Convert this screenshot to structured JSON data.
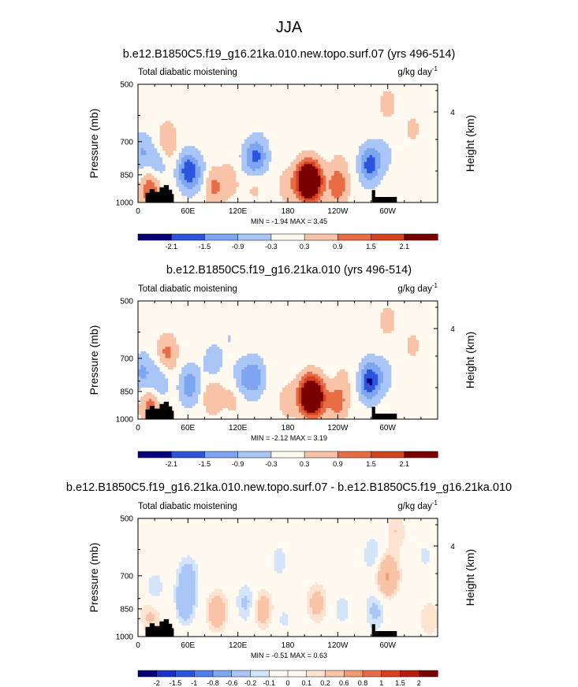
{
  "figure": {
    "title": "JJA"
  },
  "chart_data": [
    {
      "type": "heatmap",
      "title": "b.e12.B1850C5.f19_g16.21ka.010.new.topo.surf.07 (yrs 496-514)",
      "left_label": "Total diabatic moistening",
      "units": "g/kg day",
      "units_exp": "-1",
      "ylabel": "Pressure (mb)",
      "ylabel_right": "Height (km)",
      "y_ticks": [
        "500",
        "700",
        "850",
        "1000"
      ],
      "y_right_ticks": [
        "4"
      ],
      "x_ticks": [
        "0",
        "60E",
        "120E",
        "180",
        "120W",
        "60W"
      ],
      "xlim": [
        0,
        360
      ],
      "ylim": [
        1000,
        500
      ],
      "min_max": "MIN = -1.94 MAX = 3.45",
      "colorbar_labels": [
        "-2.1",
        "-1.5",
        "-0.9",
        "-0.3",
        "0.3",
        "0.9",
        "1.5",
        "2.1"
      ],
      "features": [
        {
          "lon": 202,
          "p": 880,
          "value": 3.45
        },
        {
          "lon": 212,
          "p": 885,
          "value": 2.0
        },
        {
          "lon": 240,
          "p": 910,
          "value": 1.3
        },
        {
          "lon": 180,
          "p": 905,
          "value": 0.6
        },
        {
          "lon": 242,
          "p": 800,
          "value": 0.3
        },
        {
          "lon": 15,
          "p": 930,
          "value": 1.5
        },
        {
          "lon": 35,
          "p": 700,
          "value": 1.0
        },
        {
          "lon": 90,
          "p": 910,
          "value": 1.1
        },
        {
          "lon": 110,
          "p": 880,
          "value": 0.6
        },
        {
          "lon": 140,
          "p": 900,
          "value": 0.5
        },
        {
          "lon": 5,
          "p": 740,
          "value": -0.9
        },
        {
          "lon": 24,
          "p": 790,
          "value": -0.8
        },
        {
          "lon": 60,
          "p": 830,
          "value": -1.94
        },
        {
          "lon": 75,
          "p": 850,
          "value": -0.6
        },
        {
          "lon": 145,
          "p": 760,
          "value": -1.2
        },
        {
          "lon": 135,
          "p": 780,
          "value": -0.9
        },
        {
          "lon": 278,
          "p": 800,
          "value": -1.8
        },
        {
          "lon": 295,
          "p": 760,
          "value": -0.5
        },
        {
          "lon": 300,
          "p": 560,
          "value": 0.5
        },
        {
          "lon": 330,
          "p": 650,
          "value": 0.4
        },
        {
          "lon": 345,
          "p": 900,
          "value": 0.3
        },
        {
          "lon": 200,
          "p": 620,
          "value": -0.25
        },
        {
          "lon": 110,
          "p": 620,
          "value": -0.3
        },
        {
          "lon": 60,
          "p": 560,
          "value": 0.3
        },
        {
          "lon": 160,
          "p": 560,
          "value": -0.3
        }
      ]
    },
    {
      "type": "heatmap",
      "title": "b.e12.B1850C5.f19_g16.21ka.010 (yrs 496-514)",
      "left_label": "Total diabatic moistening",
      "units": "g/kg day",
      "units_exp": "-1",
      "ylabel": "Pressure (mb)",
      "ylabel_right": "Height (km)",
      "y_ticks": [
        "500",
        "700",
        "850",
        "1000"
      ],
      "y_right_ticks": [
        "4"
      ],
      "x_ticks": [
        "0",
        "60E",
        "120E",
        "180",
        "120W",
        "60W"
      ],
      "xlim": [
        0,
        360
      ],
      "ylim": [
        1000,
        500
      ],
      "min_max": "MIN = -2.12 MAX = 3.19",
      "colorbar_labels": [
        "-2.1",
        "-1.5",
        "-0.9",
        "-0.3",
        "0.3",
        "0.9",
        "1.5",
        "2.1"
      ],
      "features": [
        {
          "lon": 205,
          "p": 870,
          "value": 3.19
        },
        {
          "lon": 215,
          "p": 880,
          "value": 2.0
        },
        {
          "lon": 240,
          "p": 905,
          "value": 1.2
        },
        {
          "lon": 180,
          "p": 895,
          "value": 0.6
        },
        {
          "lon": 248,
          "p": 780,
          "value": 0.3
        },
        {
          "lon": 15,
          "p": 930,
          "value": 1.3
        },
        {
          "lon": 35,
          "p": 680,
          "value": 1.1
        },
        {
          "lon": 90,
          "p": 870,
          "value": 0.9
        },
        {
          "lon": 115,
          "p": 880,
          "value": 0.5
        },
        {
          "lon": 5,
          "p": 760,
          "value": -1.0
        },
        {
          "lon": 25,
          "p": 800,
          "value": -0.9
        },
        {
          "lon": 62,
          "p": 820,
          "value": -1.3
        },
        {
          "lon": 90,
          "p": 720,
          "value": -0.7
        },
        {
          "lon": 140,
          "p": 780,
          "value": -1.3
        },
        {
          "lon": 125,
          "p": 790,
          "value": -0.8
        },
        {
          "lon": 278,
          "p": 800,
          "value": -2.12
        },
        {
          "lon": 295,
          "p": 770,
          "value": -0.6
        },
        {
          "lon": 300,
          "p": 560,
          "value": 0.5
        },
        {
          "lon": 330,
          "p": 650,
          "value": 0.4
        },
        {
          "lon": 345,
          "p": 900,
          "value": 0.3
        },
        {
          "lon": 195,
          "p": 630,
          "value": -0.25
        },
        {
          "lon": 110,
          "p": 620,
          "value": -0.3
        },
        {
          "lon": 60,
          "p": 560,
          "value": 0.3
        },
        {
          "lon": 160,
          "p": 560,
          "value": -0.3
        }
      ]
    },
    {
      "type": "heatmap",
      "title": "b.e12.B1850C5.f19_g16.21ka.010.new.topo.surf.07 - b.e12.B1850C5.f19_g16.21ka.010",
      "left_label": "Total diabatic moistening",
      "units": "g/kg day",
      "units_exp": "-1",
      "ylabel": "Pressure (mb)",
      "ylabel_right": "Height (km)",
      "y_ticks": [
        "500",
        "700",
        "850",
        "1000"
      ],
      "y_right_ticks": [
        "4"
      ],
      "x_ticks": [
        "0",
        "60E",
        "120E",
        "180",
        "120W",
        "60W"
      ],
      "xlim": [
        0,
        360
      ],
      "ylim": [
        1000,
        500
      ],
      "min_max": "MIN = -0.51 MAX = 0.63",
      "colorbar_labels": [
        "-2",
        "-1.5",
        "-1",
        "-0.8",
        "-0.6",
        "-0.2",
        "-0.1",
        "0",
        "0.1",
        "0.2",
        "0.6",
        "0.8",
        "1",
        "1.5",
        "2"
      ],
      "features": [
        {
          "lon": 55,
          "p": 820,
          "value": -0.51
        },
        {
          "lon": 60,
          "p": 700,
          "value": -0.3
        },
        {
          "lon": 20,
          "p": 760,
          "value": -0.2
        },
        {
          "lon": 130,
          "p": 820,
          "value": -0.25
        },
        {
          "lon": 175,
          "p": 900,
          "value": -0.12
        },
        {
          "lon": 170,
          "p": 640,
          "value": -0.15
        },
        {
          "lon": 245,
          "p": 850,
          "value": -0.15
        },
        {
          "lon": 282,
          "p": 620,
          "value": -0.2
        },
        {
          "lon": 285,
          "p": 860,
          "value": -0.25
        },
        {
          "lon": 345,
          "p": 620,
          "value": -0.12
        },
        {
          "lon": 95,
          "p": 860,
          "value": 0.4
        },
        {
          "lon": 150,
          "p": 850,
          "value": 0.35
        },
        {
          "lon": 215,
          "p": 820,
          "value": 0.3
        },
        {
          "lon": 300,
          "p": 700,
          "value": 0.63
        },
        {
          "lon": 15,
          "p": 880,
          "value": 0.25
        },
        {
          "lon": 42,
          "p": 840,
          "value": 0.15
        },
        {
          "lon": 310,
          "p": 540,
          "value": 0.2
        },
        {
          "lon": 350,
          "p": 900,
          "value": 0.2
        },
        {
          "lon": 250,
          "p": 560,
          "value": 0.1
        }
      ]
    }
  ],
  "colors": {
    "scale_3": [
      "#08007a",
      "#1a30c8",
      "#2b55dc",
      "#4f7fe8",
      "#7ea5f0",
      "#a9c6f6",
      "#d3e4fb",
      "#fff9f0",
      "#fde3d0",
      "#f8c3a6",
      "#f29a73",
      "#e86c45",
      "#d4421f",
      "#b21f10",
      "#7a0000"
    ],
    "terrain": "#000000"
  }
}
